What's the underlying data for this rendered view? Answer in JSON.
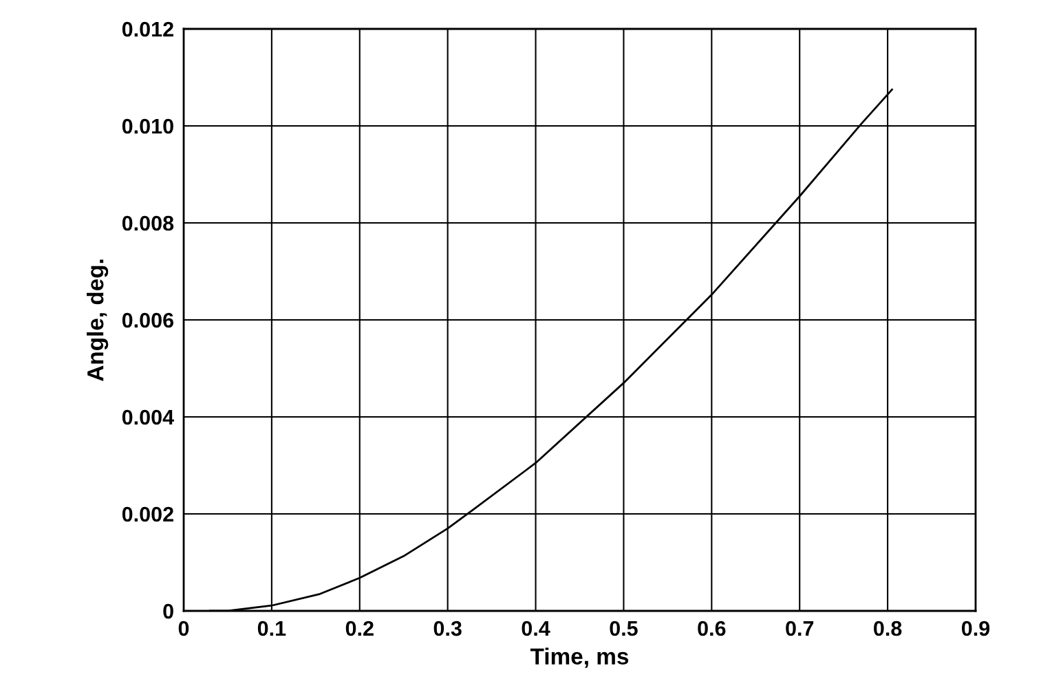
{
  "chart_data": {
    "type": "line",
    "xlabel": "Time, ms",
    "ylabel": "Angle, deg.",
    "x": [
      0.03,
      0.05,
      0.1,
      0.155,
      0.2,
      0.25,
      0.3,
      0.33,
      0.4,
      0.5,
      0.6,
      0.7,
      0.77,
      0.805
    ],
    "series": [
      {
        "color": "#000000",
        "values": [
          0,
          0,
          0.00011,
          0.00035,
          0.00068,
          0.00113,
          0.0017,
          0.0021,
          0.00305,
          0.0047,
          0.00652,
          0.00855,
          0.01004,
          0.01075
        ]
      }
    ],
    "xlim": [
      0,
      0.9
    ],
    "xticks": [
      0,
      0.1,
      0.2,
      0.3,
      0.4,
      0.5,
      0.6,
      0.7,
      0.8,
      0.9
    ],
    "ylim": [
      0,
      0.012
    ],
    "yticks": [
      0,
      {
        "value": 0.002,
        "label": "0.002"
      },
      {
        "value": 0.004,
        "label": "0.004"
      },
      {
        "value": 0.006,
        "label": "0.006"
      },
      {
        "value": 0.008,
        "label": "0.008"
      },
      {
        "value": 0.01,
        "label": "0.010"
      },
      {
        "value": 0.012,
        "label": "0.012"
      }
    ],
    "grid": true,
    "marker": "none",
    "line_style": "solid",
    "legend": false
  }
}
